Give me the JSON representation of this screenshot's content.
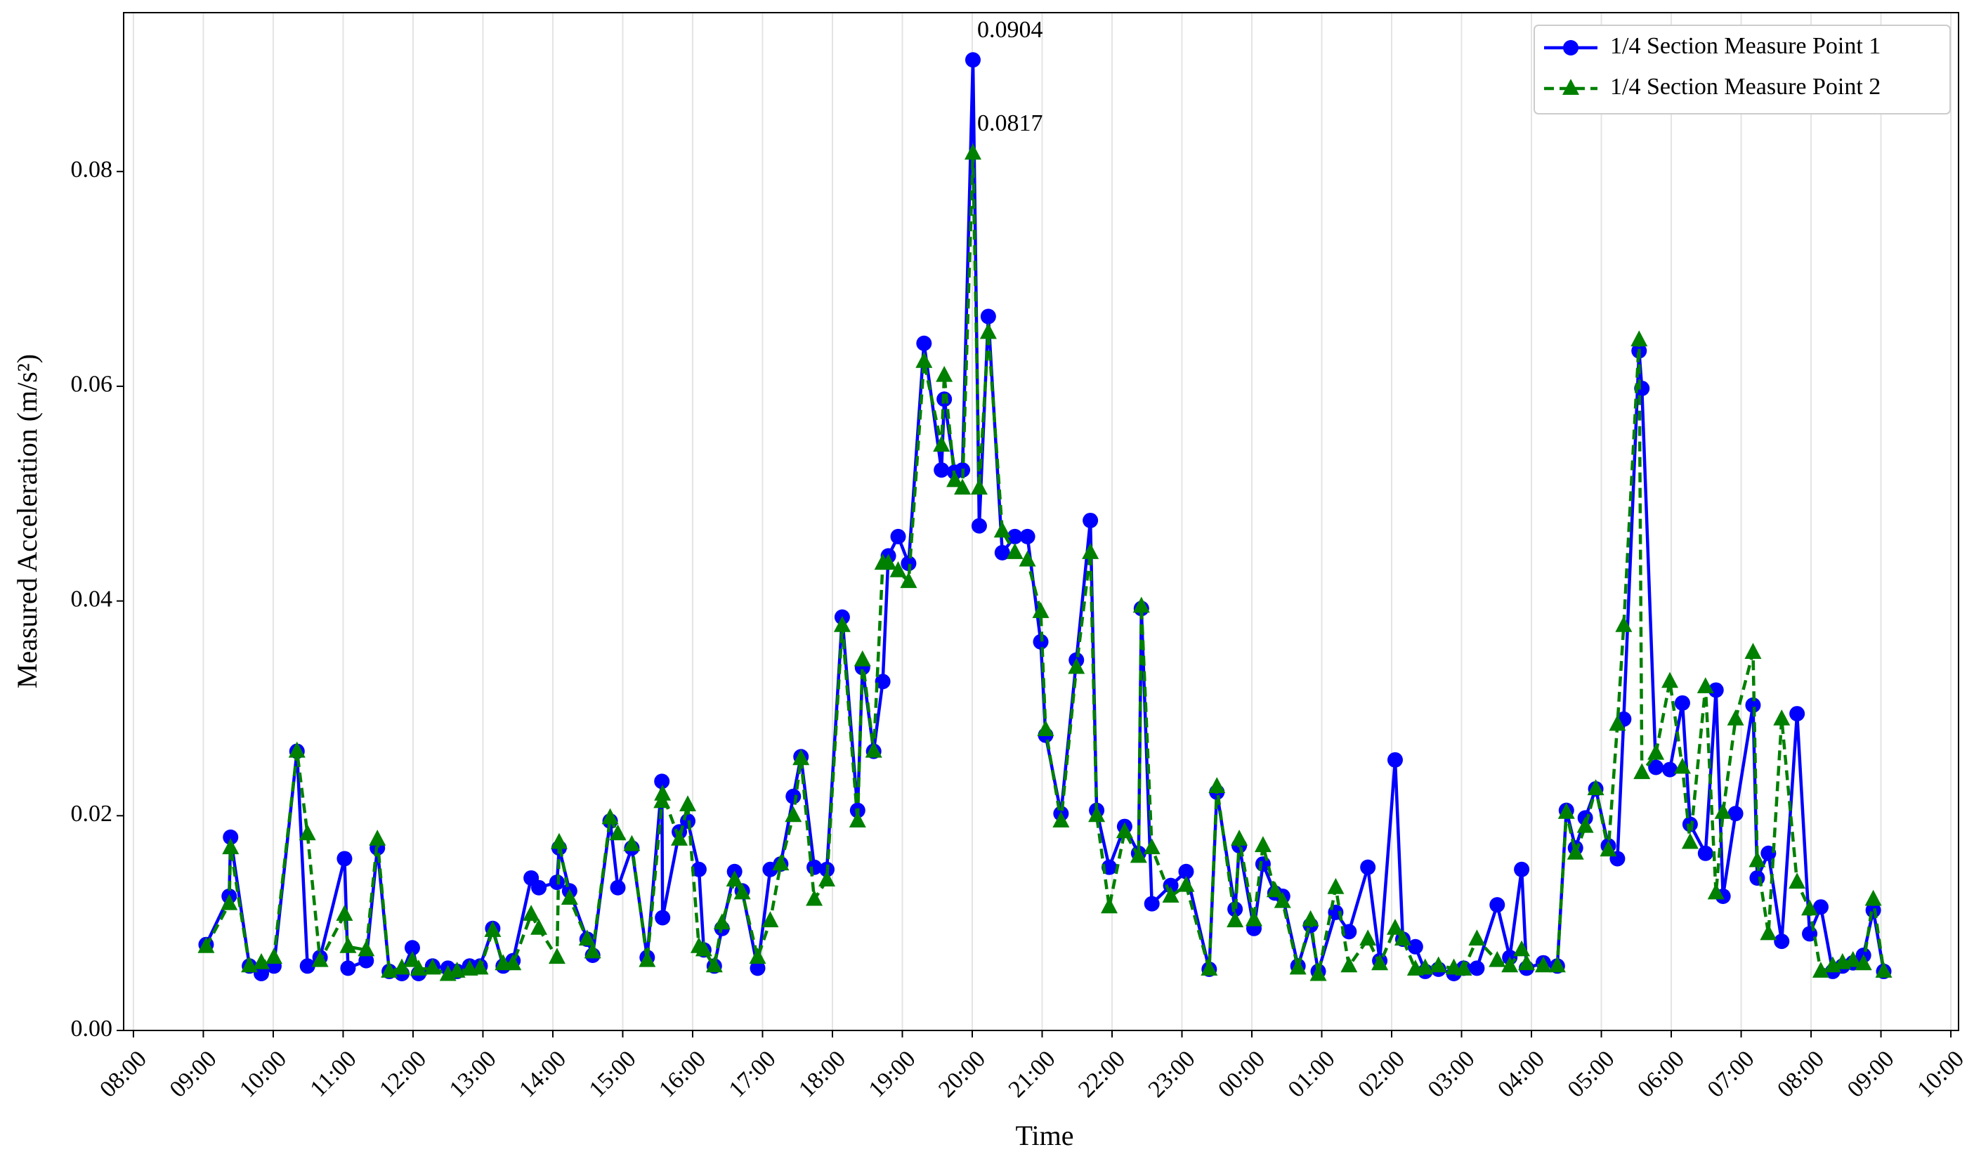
{
  "chart_data": {
    "type": "line",
    "xlabel": "Time",
    "ylabel": "Measured Acceleration (m/s²)",
    "x": [
      9.04,
      9.37,
      9.39,
      9.66,
      9.83,
      10.01,
      10.34,
      10.49,
      10.67,
      11.02,
      11.07,
      11.33,
      11.49,
      11.66,
      11.84,
      11.99,
      12.08,
      12.28,
      12.5,
      12.63,
      12.81,
      12.96,
      13.14,
      13.29,
      13.43,
      13.69,
      13.8,
      14.06,
      14.09,
      14.24,
      14.49,
      14.57,
      14.82,
      14.93,
      15.13,
      15.35,
      15.56,
      15.57,
      15.81,
      15.93,
      16.09,
      16.16,
      16.31,
      16.42,
      16.6,
      16.71,
      16.93,
      17.11,
      17.26,
      17.44,
      17.55,
      17.74,
      17.92,
      18.14,
      18.36,
      18.43,
      18.59,
      18.72,
      18.8,
      18.94,
      19.09,
      19.31,
      19.56,
      19.6,
      19.75,
      19.86,
      20.01,
      20.1,
      20.23,
      20.43,
      20.61,
      20.79,
      20.98,
      21.05,
      21.27,
      21.49,
      21.69,
      21.78,
      21.96,
      22.18,
      22.38,
      22.42,
      22.57,
      22.84,
      23.06,
      23.39,
      23.5,
      23.76,
      23.82,
      24.03,
      24.16,
      24.33,
      24.44,
      24.66,
      24.84,
      24.95,
      25.2,
      25.39,
      25.66,
      25.83,
      26.05,
      26.16,
      26.34,
      26.48,
      26.67,
      26.89,
      27.03,
      27.22,
      27.51,
      27.69,
      27.86,
      27.93,
      28.17,
      28.37,
      28.5,
      28.63,
      28.77,
      28.92,
      29.1,
      29.23,
      29.32,
      29.54,
      29.58,
      29.78,
      29.98,
      30.16,
      30.27,
      30.49,
      30.64,
      30.74,
      30.92,
      31.17,
      31.23,
      31.39,
      31.58,
      31.8,
      31.98,
      32.14,
      32.31,
      32.45,
      32.6,
      32.75,
      32.89,
      33.04
    ],
    "series": [
      {
        "name": "1/4 Section Measure Point 1",
        "color": "#0000ff",
        "linestyle": "solid",
        "marker": "circle",
        "values": [
          0.008,
          0.0125,
          0.018,
          0.006,
          0.0053,
          0.006,
          0.026,
          0.006,
          0.0068,
          0.016,
          0.0058,
          0.0065,
          0.017,
          0.0055,
          0.0053,
          0.0077,
          0.0053,
          0.006,
          0.0058,
          0.0055,
          0.006,
          0.006,
          0.0095,
          0.006,
          0.0065,
          0.0142,
          0.0133,
          0.0138,
          0.017,
          0.013,
          0.0085,
          0.007,
          0.0195,
          0.0133,
          0.017,
          0.0068,
          0.0232,
          0.0105,
          0.0185,
          0.0195,
          0.015,
          0.0075,
          0.006,
          0.0095,
          0.0148,
          0.013,
          0.0058,
          0.015,
          0.0155,
          0.0218,
          0.0255,
          0.0152,
          0.015,
          0.0385,
          0.0205,
          0.0338,
          0.026,
          0.0325,
          0.0442,
          0.046,
          0.0435,
          0.064,
          0.0522,
          0.0588,
          0.052,
          0.0522,
          0.0904,
          0.047,
          0.0665,
          0.0445,
          0.046,
          0.046,
          0.0362,
          0.0275,
          0.0202,
          0.0345,
          0.0475,
          0.0205,
          0.0152,
          0.019,
          0.0165,
          0.0393,
          0.0118,
          0.0135,
          0.0148,
          0.0057,
          0.0222,
          0.0113,
          0.0172,
          0.0095,
          0.0155,
          0.0128,
          0.0125,
          0.006,
          0.0098,
          0.0055,
          0.011,
          0.0092,
          0.0152,
          0.0065,
          0.0252,
          0.0085,
          0.0078,
          0.0055,
          0.0057,
          0.0053,
          0.0058,
          0.0058,
          0.0117,
          0.0068,
          0.015,
          0.0058,
          0.0063,
          0.006,
          0.0205,
          0.017,
          0.0198,
          0.0225,
          0.0172,
          0.016,
          0.029,
          0.0633,
          0.0598,
          0.0245,
          0.0243,
          0.0305,
          0.0192,
          0.0165,
          0.0317,
          0.0125,
          0.0202,
          0.0303,
          0.0142,
          0.0165,
          0.0083,
          0.0295,
          0.009,
          0.0115,
          0.0055,
          0.006,
          0.0063,
          0.007,
          0.0112,
          0.0055
        ]
      },
      {
        "name": "1/4 Section Measure Point 2",
        "color": "#008000",
        "linestyle": "dashed",
        "marker": "triangle",
        "values": [
          0.0078,
          0.0118,
          0.017,
          0.006,
          0.0063,
          0.0068,
          0.026,
          0.0183,
          0.0065,
          0.0108,
          0.0078,
          0.0075,
          0.0178,
          0.0055,
          0.0058,
          0.0065,
          0.0057,
          0.0058,
          0.0052,
          0.0055,
          0.0057,
          0.0058,
          0.0093,
          0.0062,
          0.0062,
          0.0108,
          0.0095,
          0.0068,
          0.0175,
          0.0123,
          0.0085,
          0.0073,
          0.0198,
          0.0183,
          0.0173,
          0.0065,
          0.0213,
          0.022,
          0.0178,
          0.021,
          0.0078,
          0.0075,
          0.006,
          0.01,
          0.014,
          0.0128,
          0.0068,
          0.0102,
          0.0155,
          0.02,
          0.0253,
          0.0122,
          0.014,
          0.0377,
          0.0195,
          0.0345,
          0.026,
          0.0435,
          0.0435,
          0.0428,
          0.0418,
          0.0623,
          0.0545,
          0.061,
          0.0512,
          0.0505,
          0.0817,
          0.0505,
          0.065,
          0.0465,
          0.0445,
          0.0438,
          0.039,
          0.028,
          0.0195,
          0.0338,
          0.0445,
          0.02,
          0.0115,
          0.0185,
          0.0162,
          0.0395,
          0.017,
          0.0125,
          0.0135,
          0.0057,
          0.0227,
          0.0102,
          0.0178,
          0.0103,
          0.0172,
          0.013,
          0.012,
          0.0058,
          0.0103,
          0.0052,
          0.0133,
          0.006,
          0.0085,
          0.0062,
          0.0095,
          0.0085,
          0.0057,
          0.0058,
          0.006,
          0.0058,
          0.0057,
          0.0085,
          0.0065,
          0.006,
          0.0075,
          0.0062,
          0.006,
          0.006,
          0.0203,
          0.0165,
          0.019,
          0.0225,
          0.0168,
          0.0285,
          0.0377,
          0.0643,
          0.024,
          0.0258,
          0.0325,
          0.0245,
          0.0175,
          0.032,
          0.0128,
          0.0203,
          0.029,
          0.0352,
          0.0158,
          0.009,
          0.029,
          0.0138,
          0.0113,
          0.0055,
          0.006,
          0.0063,
          0.0065,
          0.0062,
          0.0122,
          0.0055
        ]
      }
    ],
    "annotations": [
      "0.0904",
      "0.0817"
    ],
    "xlim": [
      7.86,
      34.11
    ],
    "xticks": [
      {
        "value": 8,
        "label": "08:00"
      },
      {
        "value": 9,
        "label": "09:00"
      },
      {
        "value": 10,
        "label": "10:00"
      },
      {
        "value": 11,
        "label": "11:00"
      },
      {
        "value": 12,
        "label": "12:00"
      },
      {
        "value": 13,
        "label": "13:00"
      },
      {
        "value": 14,
        "label": "14:00"
      },
      {
        "value": 15,
        "label": "15:00"
      },
      {
        "value": 16,
        "label": "16:00"
      },
      {
        "value": 17,
        "label": "17:00"
      },
      {
        "value": 18,
        "label": "18:00"
      },
      {
        "value": 19,
        "label": "19:00"
      },
      {
        "value": 20,
        "label": "20:00"
      },
      {
        "value": 21,
        "label": "21:00"
      },
      {
        "value": 22,
        "label": "22:00"
      },
      {
        "value": 23,
        "label": "23:00"
      },
      {
        "value": 24,
        "label": "00:00"
      },
      {
        "value": 25,
        "label": "01:00"
      },
      {
        "value": 26,
        "label": "02:00"
      },
      {
        "value": 27,
        "label": "03:00"
      },
      {
        "value": 28,
        "label": "04:00"
      },
      {
        "value": 29,
        "label": "05:00"
      },
      {
        "value": 30,
        "label": "06:00"
      },
      {
        "value": 31,
        "label": "07:00"
      },
      {
        "value": 32,
        "label": "08:00"
      },
      {
        "value": 33,
        "label": "09:00"
      },
      {
        "value": 34,
        "label": "10:00"
      }
    ],
    "ylim": [
      0,
      0.0948
    ],
    "yticks": [
      {
        "value": 0,
        "label": "0.00"
      },
      0.02,
      0.04,
      0.06,
      0.08
    ],
    "grid": "x",
    "legend": "upper right"
  }
}
